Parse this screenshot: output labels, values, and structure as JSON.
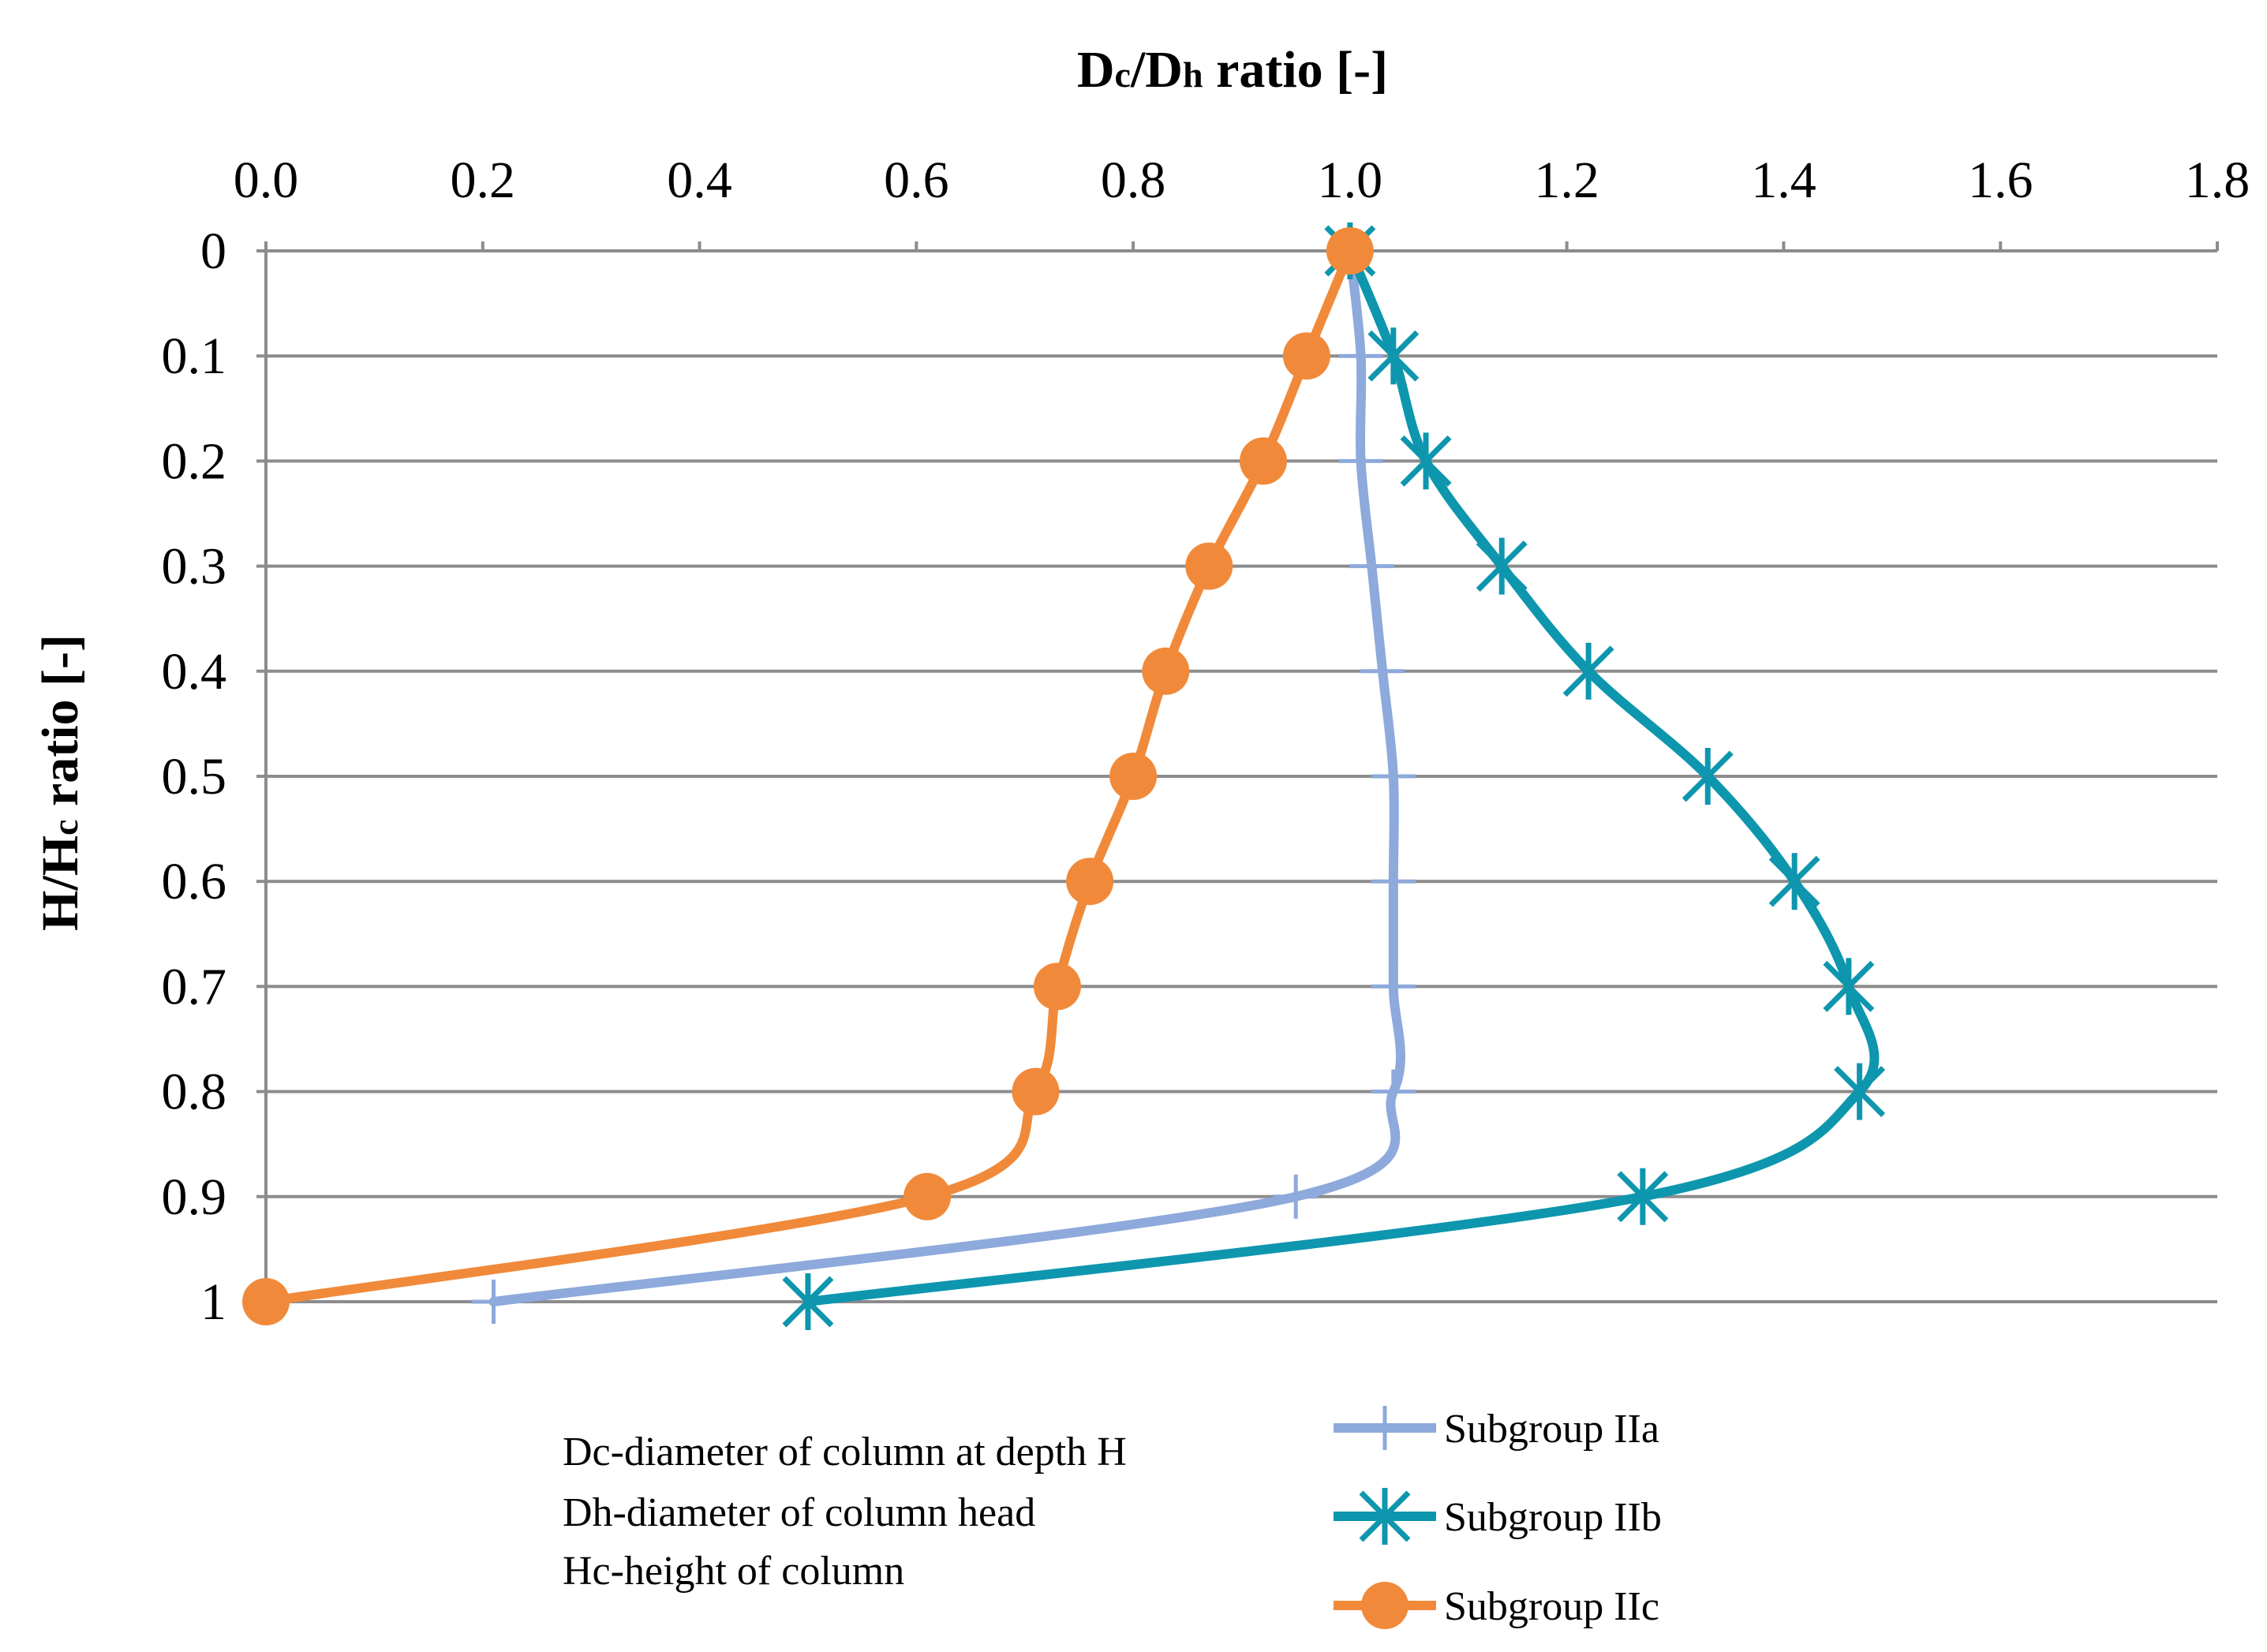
{
  "chart_data": {
    "type": "line",
    "title": "",
    "xlabel": {
      "main": "D",
      "sub1": "c",
      "mid": "/D",
      "sub2": "h",
      "rest": " ratio [-]"
    },
    "ylabel": {
      "main": "H/H",
      "sub": "c",
      "rest": " ratio [-]"
    },
    "xlim": [
      0.0,
      1.8
    ],
    "ylim": [
      0,
      1
    ],
    "x_axis_position": "top",
    "y_axis_inverted": true,
    "x_ticks": [
      "0.0",
      "0.2",
      "0.4",
      "0.6",
      "0.8",
      "1.0",
      "1.2",
      "1.4",
      "1.6",
      "1.8"
    ],
    "y_ticks": [
      "0",
      "0.1",
      "0.2",
      "0.3",
      "0.4",
      "0.5",
      "0.6",
      "0.7",
      "0.8",
      "0.9",
      "1"
    ],
    "grid": "horizontal",
    "legend_position": "bottom-right",
    "notes": [
      "Dc-diameter of column at depth H",
      "Dh-diameter of column head",
      "Hc-height of column"
    ],
    "series": [
      {
        "name": "Subgroup IIa",
        "color": "#8EA9DB",
        "marker": "plus",
        "points": [
          [
            1.0,
            0
          ],
          [
            1.01,
            0.1
          ],
          [
            1.01,
            0.2
          ],
          [
            1.02,
            0.3
          ],
          [
            1.03,
            0.4
          ],
          [
            1.04,
            0.5
          ],
          [
            1.04,
            0.6
          ],
          [
            1.04,
            0.7
          ],
          [
            1.04,
            0.8
          ],
          [
            0.95,
            0.9
          ],
          [
            0.21,
            1
          ]
        ]
      },
      {
        "name": "Subgroup IIb",
        "color": "#0E96AE",
        "marker": "star",
        "points": [
          [
            1.0,
            0
          ],
          [
            1.04,
            0.1
          ],
          [
            1.07,
            0.2
          ],
          [
            1.14,
            0.3
          ],
          [
            1.22,
            0.4
          ],
          [
            1.33,
            0.5
          ],
          [
            1.41,
            0.6
          ],
          [
            1.46,
            0.7
          ],
          [
            1.47,
            0.8
          ],
          [
            1.27,
            0.9
          ],
          [
            0.5,
            1
          ]
        ]
      },
      {
        "name": "Subgroup IIc",
        "color": "#F08A3A",
        "marker": "circle",
        "points": [
          [
            1.0,
            0
          ],
          [
            0.96,
            0.1
          ],
          [
            0.92,
            0.2
          ],
          [
            0.87,
            0.3
          ],
          [
            0.83,
            0.4
          ],
          [
            0.8,
            0.5
          ],
          [
            0.76,
            0.6
          ],
          [
            0.73,
            0.7
          ],
          [
            0.71,
            0.8
          ],
          [
            0.61,
            0.9
          ],
          [
            0.0,
            1
          ]
        ]
      }
    ]
  }
}
